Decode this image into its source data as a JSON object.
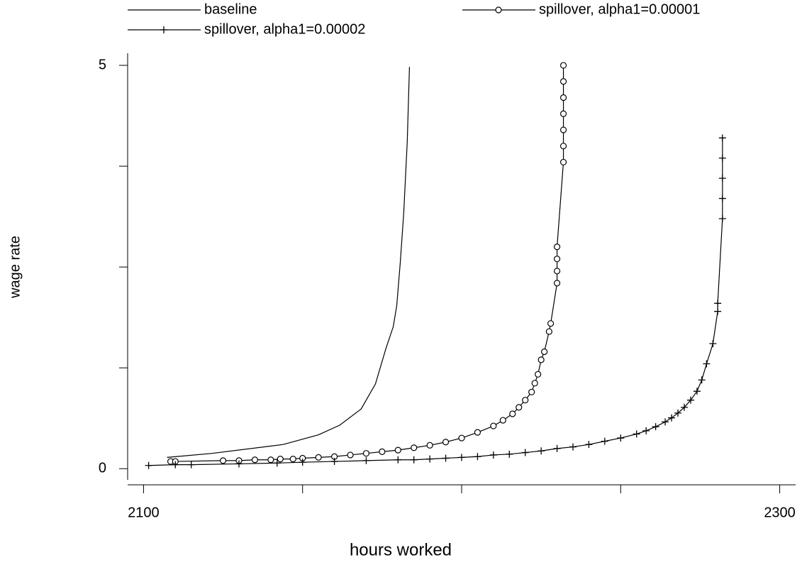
{
  "chart_data": {
    "type": "line",
    "xlabel": "hours worked",
    "ylabel": "wage rate",
    "xlim": [
      2095,
      2305
    ],
    "ylim": [
      -0.2,
      5.15
    ],
    "xticks": [
      2100,
      2300
    ],
    "xminor_ticks": [
      2150,
      2200,
      2250
    ],
    "yticks": [
      0,
      5
    ],
    "yminor_ticks": [
      1.25,
      2.5,
      3.75
    ],
    "series": [
      {
        "name": "baseline",
        "color": "#000000",
        "marker": "none",
        "x": [
          2107.4,
          2121.6,
          2143.9,
          2155,
          2161.7,
          2168.4,
          2172.9,
          2176.2,
          2178.5,
          2179.6,
          2180.7,
          2181.8,
          2182.9,
          2183.6
        ],
        "y": [
          0.14,
          0.19,
          0.3,
          0.42,
          0.54,
          0.74,
          1.05,
          1.49,
          1.76,
          2.02,
          2.55,
          3.17,
          4.05,
          4.98
        ]
      },
      {
        "name": "spillover, alpha1=0.00001",
        "color": "#000000",
        "marker": "circle",
        "x": [
          2108.5,
          2110,
          2125,
          2130,
          2135,
          2140,
          2143,
          2147,
          2150,
          2155,
          2160,
          2165,
          2170,
          2175,
          2180,
          2185,
          2190,
          2195,
          2200,
          2205,
          2210,
          2213,
          2216,
          2218,
          2220,
          2222,
          2223,
          2224,
          2225,
          2226,
          2227.5,
          2228,
          2230,
          2230,
          2230,
          2230,
          2232,
          2232,
          2232,
          2232,
          2232,
          2232,
          2232
        ],
        "y": [
          0.09,
          0.09,
          0.1,
          0.1,
          0.11,
          0.11,
          0.12,
          0.12,
          0.13,
          0.14,
          0.15,
          0.17,
          0.19,
          0.21,
          0.23,
          0.26,
          0.29,
          0.33,
          0.38,
          0.45,
          0.53,
          0.6,
          0.68,
          0.76,
          0.85,
          0.95,
          1.06,
          1.17,
          1.35,
          1.45,
          1.7,
          1.8,
          2.3,
          2.45,
          2.6,
          2.75,
          3.8,
          4.0,
          4.2,
          4.4,
          4.6,
          4.8,
          5.0
        ]
      },
      {
        "name": "spillover, alpha1=0.00002",
        "color": "#000000",
        "marker": "plus",
        "x": [
          2101.6,
          2110,
          2115,
          2130,
          2142,
          2150,
          2160,
          2170,
          2180,
          2185,
          2190,
          2195,
          2200,
          2205,
          2210,
          2215,
          2220,
          2225,
          2230,
          2235,
          2240,
          2245,
          2250,
          2255,
          2258,
          2261,
          2264,
          2266,
          2268,
          2270,
          2272,
          2274,
          2275.5,
          2277,
          2279,
          2280.5,
          2280.5,
          2282,
          2282,
          2282,
          2282,
          2282
        ],
        "y": [
          0.04,
          0.05,
          0.05,
          0.06,
          0.07,
          0.08,
          0.09,
          0.1,
          0.11,
          0.11,
          0.12,
          0.13,
          0.14,
          0.15,
          0.17,
          0.18,
          0.2,
          0.22,
          0.25,
          0.27,
          0.3,
          0.34,
          0.38,
          0.43,
          0.47,
          0.52,
          0.58,
          0.63,
          0.69,
          0.76,
          0.85,
          0.96,
          1.1,
          1.3,
          1.55,
          1.95,
          2.05,
          3.1,
          3.35,
          3.6,
          3.85,
          4.1
        ]
      }
    ]
  }
}
